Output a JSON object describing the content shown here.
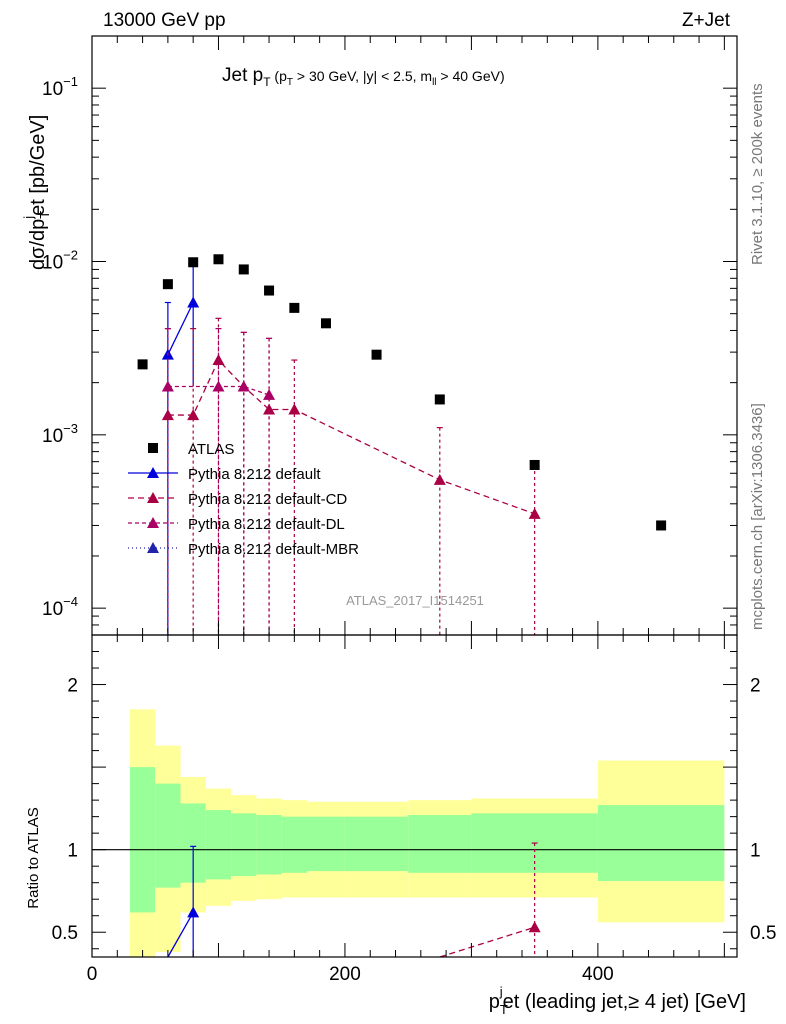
{
  "header": {
    "left_label": "13000 GeV pp",
    "right_label": "Z+Jet",
    "side_label_top": "Rivet 3.1.10, ≥ 200k events",
    "side_label_bottom": "mcplots.cern.ch [arXiv:1306.3436]",
    "watermark": "ATLAS_2017_I1514251"
  },
  "colors": {
    "data": "#000000",
    "default": "#0000dd",
    "cd": "#aa0044",
    "dl": "#aa0066",
    "mbr": "#2222aa",
    "band_inner": "#99ff99",
    "band_outer": "#ffff99"
  },
  "chart_data": [
    {
      "type": "scatter",
      "panel": "main",
      "title": "Jet p_T (p_T > 30 GeV, |y| < 2.5, m_ll > 40 GeV)",
      "title_parts": {
        "main": "Jet p",
        "main_sub": "T",
        "cond_1": " (p",
        "cond_1_sub": "T",
        "cond_2": " > 30 GeV, |y| < 2.5, m",
        "cond_2_sub": "ll",
        "cond_3": " > 40 GeV)"
      },
      "ylabel": "dσ/dp_T^j et [pb/GeV]",
      "ylabel_parts": {
        "a": "dσ/dp",
        "sub": "T",
        "sup": "j",
        "b": "et [pb/GeV]"
      },
      "xlim": [
        0,
        510
      ],
      "ylog": true,
      "ylim": [
        7e-05,
        0.2
      ],
      "y_ticks": [
        {
          "value": 0.1,
          "base": "10",
          "exp": "−1"
        },
        {
          "value": 0.01,
          "base": "10",
          "exp": "−2"
        },
        {
          "value": 0.001,
          "base": "10",
          "exp": "−3"
        },
        {
          "value": 0.0001,
          "base": "10",
          "exp": "−4"
        }
      ],
      "legend": [
        {
          "label": "ATLAS",
          "series": "atlas"
        },
        {
          "label": "Pythia 8.212 default",
          "series": "default"
        },
        {
          "label": "Pythia 8.212 default-CD",
          "series": "cd"
        },
        {
          "label": "Pythia 8.212 default-DL",
          "series": "dl"
        },
        {
          "label": "Pythia 8.212 default-MBR",
          "series": "mbr"
        }
      ],
      "series": [
        {
          "name": "ATLAS",
          "key": "atlas",
          "x": [
            40,
            60,
            80,
            100,
            120,
            140,
            160,
            185,
            225,
            275,
            350,
            450
          ],
          "y": [
            0.00255,
            0.0074,
            0.0099,
            0.0103,
            0.009,
            0.0068,
            0.0054,
            0.0044,
            0.0029,
            0.0016,
            0.00067,
            0.0003
          ]
        },
        {
          "name": "Pythia 8.212 default",
          "key": "default",
          "x": [
            60,
            80
          ],
          "y": [
            0.0029,
            0.0058
          ],
          "y_low": [
            1e-05,
            0.0019
          ],
          "y_high": [
            0.0058,
            0.0098
          ]
        },
        {
          "name": "Pythia 8.212 default-CD",
          "key": "cd",
          "x": [
            60,
            80,
            100,
            120,
            140,
            160,
            275,
            350
          ],
          "y": [
            0.0013,
            0.0013,
            0.0027,
            0.0019,
            0.0014,
            0.0014,
            0.00055,
            0.00035
          ],
          "y_low": [
            1e-05,
            1e-05,
            1e-05,
            1e-05,
            1e-05,
            1e-05,
            1e-05,
            1e-05
          ],
          "y_high": [
            0.0041,
            0.0041,
            0.0047,
            0.0039,
            0.0036,
            0.0027,
            0.0011,
            0.00067
          ]
        },
        {
          "name": "Pythia 8.212 default-DL",
          "key": "dl",
          "x": [
            60,
            100,
            120,
            140
          ],
          "y": [
            0.0019,
            0.0019,
            0.0019,
            0.0017
          ],
          "y_low": [
            1e-05,
            1e-05,
            1e-05,
            1e-05
          ],
          "y_high": [
            0.0041,
            0.0041,
            0.0039,
            0.0036
          ]
        },
        {
          "name": "Pythia 8.212 default-MBR",
          "key": "mbr",
          "x": [],
          "y": []
        }
      ]
    },
    {
      "type": "line",
      "panel": "ratio",
      "ylabel": "Ratio to ATLAS",
      "xlabel": "p_T^j et (leading jet,≥ 4 jet) [GeV]",
      "xlabel_parts": {
        "a": "p",
        "sub": "T",
        "sup": "j",
        "b": "et (leading jet,≥ 4 jet) [GeV]"
      },
      "xlim": [
        0,
        510
      ],
      "ylim": [
        0.35,
        2.3
      ],
      "x_ticks": [
        0,
        200,
        400
      ],
      "y_ticks": [
        0.5,
        1,
        2
      ],
      "bands": {
        "edges": [
          30,
          50,
          70,
          90,
          110,
          130,
          150,
          170,
          200,
          250,
          300,
          400,
          500
        ],
        "outer_low": [
          0.23,
          0.38,
          0.62,
          0.66,
          0.69,
          0.7,
          0.71,
          0.71,
          0.71,
          0.71,
          0.71,
          0.56
        ],
        "outer_high": [
          1.85,
          1.63,
          1.44,
          1.37,
          1.33,
          1.31,
          1.3,
          1.29,
          1.29,
          1.3,
          1.31,
          1.54
        ],
        "inner_low": [
          0.62,
          0.77,
          0.8,
          0.82,
          0.84,
          0.85,
          0.86,
          0.87,
          0.87,
          0.86,
          0.86,
          0.81
        ],
        "inner_high": [
          1.5,
          1.4,
          1.28,
          1.24,
          1.22,
          1.21,
          1.2,
          1.2,
          1.2,
          1.21,
          1.22,
          1.27
        ]
      },
      "series": [
        {
          "name": "Pythia 8.212 default",
          "key": "default",
          "x": [
            60,
            80
          ],
          "y": [
            0.3,
            0.62
          ],
          "y_low": [
            0.3,
            0.2
          ],
          "y_high": [
            0.3,
            1.02
          ]
        },
        {
          "name": "Pythia 8.212 default-CD",
          "key": "cd",
          "x": [
            275,
            350
          ],
          "y": [
            0.32,
            0.53
          ],
          "y_low": [
            0.32,
            0.2
          ],
          "y_high": [
            0.32,
            1.04
          ]
        }
      ]
    }
  ]
}
